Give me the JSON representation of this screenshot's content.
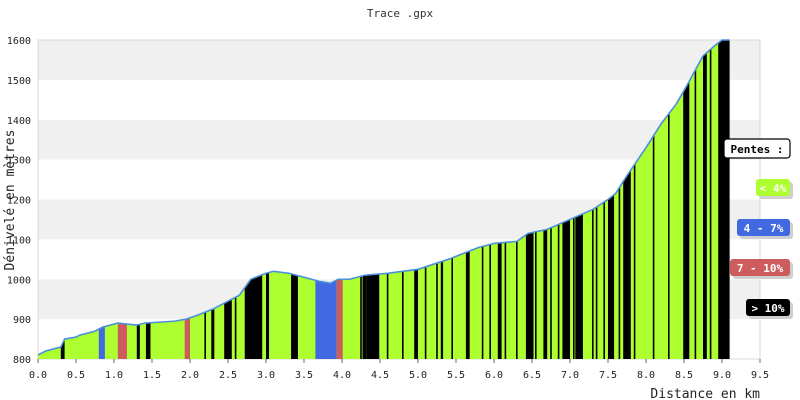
{
  "chart_data": {
    "type": "area",
    "title": "Trace .gpx",
    "xlabel": "Distance en km",
    "ylabel": "Dénivelé en mètres",
    "xlim": [
      0,
      9.5
    ],
    "ylim": [
      800,
      1600
    ],
    "x_ticks": [
      "0.0",
      "0.5",
      "1.0",
      "1.5",
      "2.0",
      "2.5",
      "3.0",
      "3.5",
      "4.0",
      "4.5",
      "5.0",
      "5.5",
      "6.0",
      "6.5",
      "7.0",
      "7.5",
      "8.0",
      "8.5",
      "9.0",
      "9.5"
    ],
    "y_ticks": [
      "800",
      "900",
      "1000",
      "1100",
      "1200",
      "1300",
      "1400",
      "1500",
      "1600"
    ],
    "grid": "horizontal alternating bands",
    "legend_title": "Pentes :",
    "legend": [
      {
        "label": "< 4%",
        "color": "#adff2f",
        "text_color": "#ffffff"
      },
      {
        "label": "4 - 7%",
        "color": "#4169e1",
        "text_color": "#ffffff"
      },
      {
        "label": "7 - 10%",
        "color": "#cd5c5c",
        "text_color": "#ffffff"
      },
      {
        "label": "> 10%",
        "color": "#000000",
        "text_color": "#ffffff"
      }
    ],
    "line_color": "#4a90d9",
    "profile": [
      {
        "x": 0.0,
        "y": 810
      },
      {
        "x": 0.1,
        "y": 820
      },
      {
        "x": 0.3,
        "y": 830
      },
      {
        "x": 0.35,
        "y": 850
      },
      {
        "x": 0.5,
        "y": 855
      },
      {
        "x": 0.55,
        "y": 860
      },
      {
        "x": 0.75,
        "y": 870
      },
      {
        "x": 0.85,
        "y": 880
      },
      {
        "x": 1.05,
        "y": 890
      },
      {
        "x": 1.3,
        "y": 885
      },
      {
        "x": 1.4,
        "y": 890
      },
      {
        "x": 1.8,
        "y": 895
      },
      {
        "x": 1.95,
        "y": 900
      },
      {
        "x": 2.1,
        "y": 910
      },
      {
        "x": 2.3,
        "y": 925
      },
      {
        "x": 2.5,
        "y": 945
      },
      {
        "x": 2.65,
        "y": 960
      },
      {
        "x": 2.8,
        "y": 1000
      },
      {
        "x": 3.0,
        "y": 1015
      },
      {
        "x": 3.1,
        "y": 1020
      },
      {
        "x": 3.3,
        "y": 1015
      },
      {
        "x": 3.5,
        "y": 1005
      },
      {
        "x": 3.7,
        "y": 995
      },
      {
        "x": 3.85,
        "y": 990
      },
      {
        "x": 3.95,
        "y": 1000
      },
      {
        "x": 4.1,
        "y": 1000
      },
      {
        "x": 4.3,
        "y": 1010
      },
      {
        "x": 4.6,
        "y": 1015
      },
      {
        "x": 5.0,
        "y": 1025
      },
      {
        "x": 5.4,
        "y": 1050
      },
      {
        "x": 5.8,
        "y": 1080
      },
      {
        "x": 6.0,
        "y": 1090
      },
      {
        "x": 6.3,
        "y": 1095
      },
      {
        "x": 6.45,
        "y": 1115
      },
      {
        "x": 6.7,
        "y": 1125
      },
      {
        "x": 7.0,
        "y": 1150
      },
      {
        "x": 7.3,
        "y": 1175
      },
      {
        "x": 7.5,
        "y": 1200
      },
      {
        "x": 7.6,
        "y": 1215
      },
      {
        "x": 7.75,
        "y": 1260
      },
      {
        "x": 8.0,
        "y": 1330
      },
      {
        "x": 8.2,
        "y": 1390
      },
      {
        "x": 8.4,
        "y": 1440
      },
      {
        "x": 8.55,
        "y": 1490
      },
      {
        "x": 8.75,
        "y": 1560
      },
      {
        "x": 8.9,
        "y": 1585
      },
      {
        "x": 9.0,
        "y": 1600
      },
      {
        "x": 9.1,
        "y": 1600
      }
    ],
    "slope_segments": [
      {
        "x0": 0.3,
        "x1": 0.35,
        "class": "> 10%"
      },
      {
        "x0": 0.8,
        "x1": 0.88,
        "class": "4 - 7%"
      },
      {
        "x0": 1.05,
        "x1": 1.17,
        "class": "7 - 10%"
      },
      {
        "x0": 1.3,
        "x1": 1.34,
        "class": "> 10%"
      },
      {
        "x0": 1.42,
        "x1": 1.48,
        "class": "> 10%"
      },
      {
        "x0": 1.93,
        "x1": 2.0,
        "class": "7 - 10%"
      },
      {
        "x0": 2.28,
        "x1": 2.32,
        "class": "> 10%"
      },
      {
        "x0": 2.45,
        "x1": 2.55,
        "class": "> 10%"
      },
      {
        "x0": 2.72,
        "x1": 2.95,
        "class": "> 10%"
      },
      {
        "x0": 3.0,
        "x1": 3.04,
        "class": "> 10%"
      },
      {
        "x0": 3.33,
        "x1": 3.42,
        "class": "> 10%"
      },
      {
        "x0": 3.65,
        "x1": 3.93,
        "class": "4 - 7%"
      },
      {
        "x0": 3.93,
        "x1": 4.01,
        "class": "7 - 10%"
      },
      {
        "x0": 4.27,
        "x1": 4.32,
        "class": "> 10%"
      },
      {
        "x0": 4.32,
        "x1": 4.49,
        "class": "> 10%"
      },
      {
        "x0": 4.95,
        "x1": 5.0,
        "class": "> 10%"
      },
      {
        "x0": 5.3,
        "x1": 5.33,
        "class": "> 10%"
      },
      {
        "x0": 5.63,
        "x1": 5.68,
        "class": "> 10%"
      },
      {
        "x0": 6.05,
        "x1": 6.1,
        "class": "> 10%"
      },
      {
        "x0": 6.42,
        "x1": 6.52,
        "class": "> 10%"
      },
      {
        "x0": 6.65,
        "x1": 6.7,
        "class": "> 10%"
      },
      {
        "x0": 6.9,
        "x1": 7.0,
        "class": "> 10%"
      },
      {
        "x0": 7.07,
        "x1": 7.17,
        "class": "> 10%"
      },
      {
        "x0": 7.5,
        "x1": 7.58,
        "class": "> 10%"
      },
      {
        "x0": 7.7,
        "x1": 7.8,
        "class": "> 10%"
      },
      {
        "x0": 8.5,
        "x1": 8.57,
        "class": "> 10%"
      },
      {
        "x0": 8.75,
        "x1": 8.8,
        "class": "> 10%"
      },
      {
        "x0": 8.95,
        "x1": 9.1,
        "class": "> 10%"
      }
    ],
    "black_ticks": [
      0.33,
      1.32,
      1.45,
      2.2,
      2.3,
      2.6,
      2.8,
      3.02,
      3.37,
      4.25,
      4.6,
      4.8,
      5.1,
      5.25,
      5.45,
      5.85,
      5.95,
      6.15,
      6.3,
      6.55,
      6.75,
      6.85,
      7.05,
      7.12,
      7.3,
      7.35,
      7.45,
      7.65,
      7.85,
      8.1,
      8.3,
      8.5,
      8.65,
      8.85,
      9.0,
      9.05
    ]
  }
}
